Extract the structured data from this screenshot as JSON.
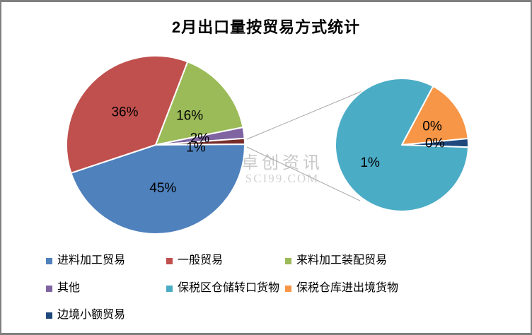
{
  "chart_data": {
    "type": "pie",
    "variant": "pie-of-pie",
    "title": "2月出口量按贸易方式统计",
    "legend_position": "bottom",
    "main_pie": {
      "start_angle_deg": 21,
      "slices": [
        {
          "id": "lailiao-jiagong",
          "category": "来料加工装配贸易",
          "value_pct": 16,
          "label": "16%",
          "sweep_deg": 57.6,
          "color": "#9bbb59"
        },
        {
          "id": "qita",
          "category": "其他",
          "value_pct": 2,
          "label": "2%",
          "sweep_deg": 7.2,
          "color": "#8064a2"
        },
        {
          "id": "secondary-group",
          "category": "",
          "value_pct": 1,
          "label": "1%",
          "sweep_deg": 3.8,
          "color": "#772c2a"
        },
        {
          "id": "jinliao-jiagong",
          "category": "进料加工贸易",
          "value_pct": 45,
          "label": "45%",
          "sweep_deg": 162.0,
          "color": "#4f81bd"
        },
        {
          "id": "yiban-maoyi",
          "category": "一般贸易",
          "value_pct": 36,
          "label": "36%",
          "sweep_deg": 129.4,
          "color": "#c0504d"
        }
      ]
    },
    "secondary_pie": {
      "start_angle_deg": 28,
      "slices": [
        {
          "id": "baoshui-cangku",
          "category": "保税仓库进出境货物",
          "value_pct": 0,
          "label": "0%",
          "sweep_deg": 56.5,
          "color": "#f79646"
        },
        {
          "id": "bianjing-xiaoe",
          "category": "边境小额贸易",
          "value_pct": 0,
          "label": "0%",
          "sweep_deg": 7.5,
          "color": "#1f497d"
        },
        {
          "id": "baoshui-qu",
          "category": "保税区仓储转口货物",
          "value_pct": 1,
          "label": "1%",
          "sweep_deg": 296.0,
          "color": "#4bacc6"
        }
      ]
    },
    "legend": [
      {
        "id": "jinliao-jiagong",
        "label": "进料加工贸易",
        "color": "#4f81bd"
      },
      {
        "id": "yiban-maoyi",
        "label": "一般贸易",
        "color": "#c0504d"
      },
      {
        "id": "lailiao-jiagong",
        "label": "来料加工装配贸易",
        "color": "#9bbb59"
      },
      {
        "id": "qita",
        "label": "其他",
        "color": "#8064a2"
      },
      {
        "id": "baoshui-qu",
        "label": "保税区仓储转口货物",
        "color": "#4bacc6"
      },
      {
        "id": "baoshui-cangku",
        "label": "保税仓库进出境货物",
        "color": "#f79646"
      },
      {
        "id": "bianjing-xiaoe",
        "label": "边境小额贸易",
        "color": "#1f497d"
      }
    ]
  },
  "watermark": {
    "line1": "卓创资讯",
    "line2": "SCI99.COM"
  }
}
